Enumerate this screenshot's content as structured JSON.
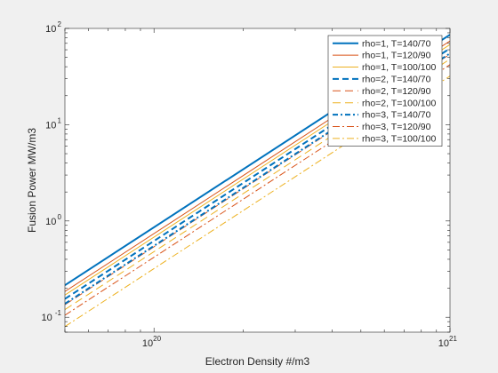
{
  "chart_data": {
    "type": "line",
    "xlabel": "Electron Density #/m3",
    "ylabel": "Fusion Power MW/m3",
    "x_scale": "log",
    "y_scale": "log",
    "xlim": [
      5e+19,
      1e+21
    ],
    "ylim": [
      0.07,
      100
    ],
    "x_tick_labels": [
      {
        "value": 1e+20,
        "base": "10",
        "exp": "20"
      },
      {
        "value": 1e+21,
        "base": "10",
        "exp": "21"
      }
    ],
    "y_tick_labels": [
      {
        "value": 0.1,
        "base": "10",
        "exp": "-1"
      },
      {
        "value": 1,
        "base": "10",
        "exp": "0"
      },
      {
        "value": 10,
        "base": "10",
        "exp": "1"
      },
      {
        "value": 100,
        "base": "10",
        "exp": "2"
      }
    ],
    "grid": false,
    "legend_position": "top-right",
    "x": [
      5e+19,
      1e+21
    ],
    "series": [
      {
        "name": "rho=1, T=140/70",
        "color": "#0072BD",
        "style": "solid",
        "width": 2.0,
        "values": [
          0.215,
          86.0
        ]
      },
      {
        "name": "rho=1, T=120/90",
        "color": "#D95319",
        "style": "solid",
        "width": 1.0,
        "values": [
          0.185,
          74.0
        ]
      },
      {
        "name": "rho=1, T=100/100",
        "color": "#EDB120",
        "style": "solid",
        "width": 1.0,
        "values": [
          0.17,
          68.0
        ]
      },
      {
        "name": "rho=2, T=140/70",
        "color": "#0072BD",
        "style": "dashed",
        "width": 2.0,
        "values": [
          0.155,
          62.0
        ]
      },
      {
        "name": "rho=2, T=120/90",
        "color": "#D95319",
        "style": "dashed",
        "width": 1.0,
        "values": [
          0.135,
          54.0
        ]
      },
      {
        "name": "rho=2, T=100/100",
        "color": "#EDB120",
        "style": "dashed",
        "width": 1.0,
        "values": [
          0.12,
          48.0
        ]
      },
      {
        "name": "rho=3, T=140/70",
        "color": "#0072BD",
        "style": "dashdot",
        "width": 2.0,
        "values": [
          0.138,
          55.0
        ]
      },
      {
        "name": "rho=3, T=120/90",
        "color": "#D95319",
        "style": "dashdot",
        "width": 1.0,
        "values": [
          0.105,
          42.0
        ]
      },
      {
        "name": "rho=3, T=100/100",
        "color": "#EDB120",
        "style": "dashdot",
        "width": 1.0,
        "values": [
          0.08,
          32.0
        ]
      }
    ]
  }
}
